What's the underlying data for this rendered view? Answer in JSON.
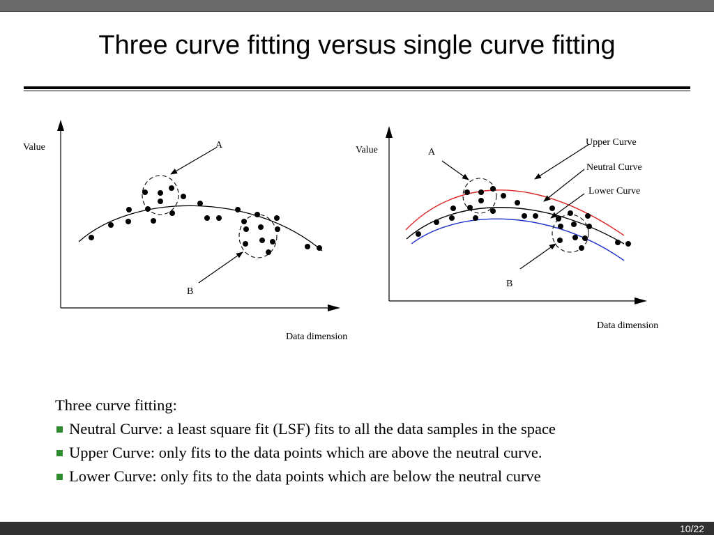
{
  "slide": {
    "title": "Three curve fitting versus single curve fitting",
    "page_number": "10/22"
  },
  "left_diagram": {
    "y_axis_label": "Value",
    "x_axis_label": "Data dimension",
    "label_a": "A",
    "label_b": "B"
  },
  "right_diagram": {
    "y_axis_label": "Value",
    "x_axis_label": "Data dimension",
    "label_a": "A",
    "label_b": "B",
    "upper_curve_label": "Upper Curve",
    "neutral_curve_label": "Neutral Curve",
    "lower_curve_label": "Lower Curve",
    "colors": {
      "upper": "#dd2222",
      "neutral": "#000000",
      "lower": "#1f2fcc"
    }
  },
  "notes": {
    "heading": "Three curve fitting:",
    "items": [
      "Neutral Curve: a least square fit (LSF) fits to all the data samples in the space",
      "Upper Curve: only fits to the data points which are above the neutral curve.",
      "Lower Curve: only fits to the data points which are below the neutral curve"
    ],
    "bullet_color": "#2e8b2e"
  }
}
